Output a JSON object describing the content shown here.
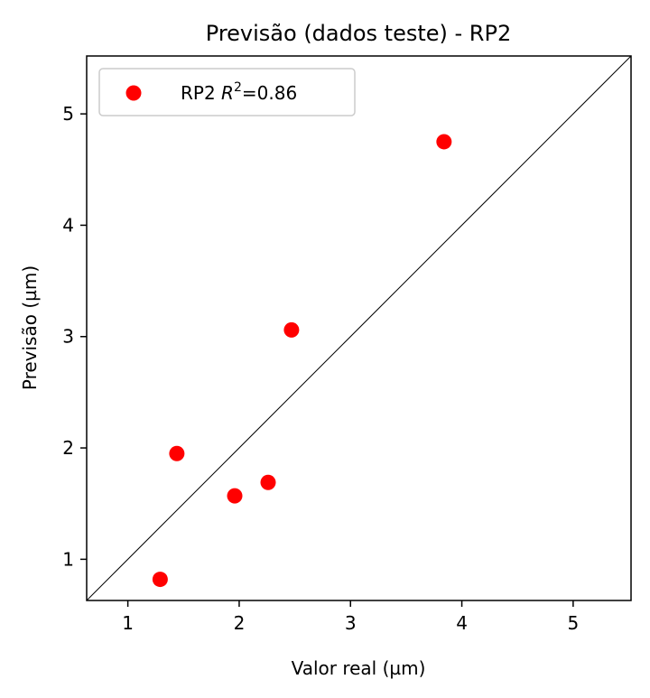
{
  "chart_data": {
    "type": "scatter",
    "title": "Previsão (dados teste) - RP2",
    "xlabel": "Valor real (µm)",
    "ylabel": "Previsão (µm)",
    "xlim": [
      0.63,
      5.52
    ],
    "ylim": [
      0.63,
      5.52
    ],
    "xticks": [
      1,
      2,
      3,
      4,
      5
    ],
    "yticks": [
      1,
      2,
      3,
      4,
      5
    ],
    "grid": false,
    "legend_position": "top-left",
    "reference_line": "y = x",
    "series": [
      {
        "name": "RP2 R²=0.86",
        "color": "#ff0000",
        "points": [
          {
            "x": 1.29,
            "y": 0.82
          },
          {
            "x": 1.44,
            "y": 1.95
          },
          {
            "x": 1.96,
            "y": 1.57
          },
          {
            "x": 2.26,
            "y": 1.69
          },
          {
            "x": 2.47,
            "y": 3.06
          },
          {
            "x": 3.84,
            "y": 4.75
          }
        ]
      }
    ],
    "legend": {
      "prefix": "RP2 ",
      "r_symbol": "R",
      "exponent": "2",
      "suffix": "=0.86"
    }
  }
}
